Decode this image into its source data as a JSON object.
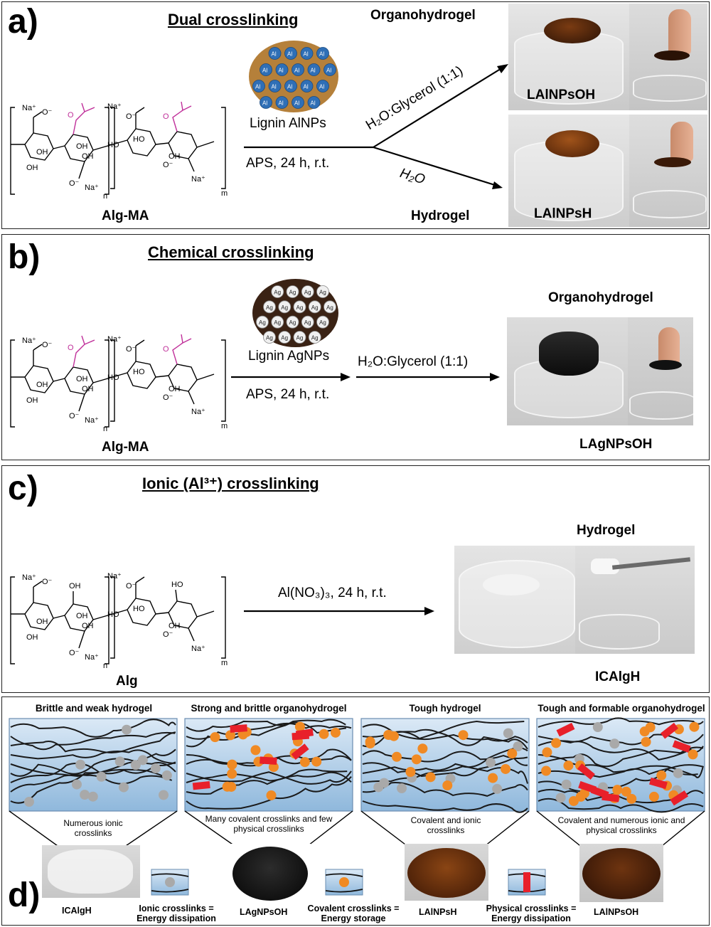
{
  "panel_a": {
    "label": "a)",
    "title": "Dual crosslinking",
    "polymer_label": "Alg-MA",
    "particles_label": "Lignin AlNPs",
    "particle_symbol": "Al",
    "conditions": "APS, 24 h, r.t.",
    "upper_arrow_label": "H₂O:Glycerol (1:1)",
    "lower_arrow_label": "H₂O",
    "top_product_type": "Organohydrogel",
    "bottom_product_type": "Hydrogel",
    "top_product_name": "LAlNPsOH",
    "bottom_product_name": "LAlNPsH"
  },
  "panel_b": {
    "label": "b)",
    "title": "Chemical crosslinking",
    "polymer_label": "Alg-MA",
    "particles_label": "Lignin AgNPs",
    "particle_symbol": "Ag",
    "conditions": "APS, 24 h, r.t.",
    "arrow_label": "H₂O:Glycerol (1:1)",
    "product_type": "Organohydrogel",
    "product_name": "LAgNPsOH"
  },
  "panel_c": {
    "label": "c)",
    "title": "Ionic (Al³⁺) crosslinking",
    "polymer_label": "Alg",
    "conditions": "Al(NO₃)₃, 24 h, r.t.",
    "product_type": "Hydrogel",
    "product_name": "ICAlgH"
  },
  "chem": {
    "na_plus": "Na⁺",
    "o_minus": "O⁻",
    "oh": "OH",
    "ho": "HO",
    "o": "O",
    "n": "n",
    "m": "m"
  },
  "panel_d": {
    "label": "d)",
    "network_titles": [
      "Brittle and weak hydrogel",
      "Strong and brittle organohydrogel",
      "Tough hydrogel",
      "Tough and formable organohydrogel"
    ],
    "network_descriptions": [
      "Numerous ionic crosslinks",
      "Many covalent crosslinks and few physical crosslinks",
      "Covalent and ionic crosslinks",
      "Covalent and numerous ionic and physical crosslinks"
    ],
    "sample_names": [
      "ICAlgH",
      "LAgNPsOH",
      "LAlNPsH",
      "LAlNPsOH"
    ],
    "legend": [
      "Ionic crosslinks = Energy dissipation",
      "Covalent crosslinks = Energy storage",
      "Physical crosslinks = Energy dissipation"
    ]
  },
  "colors": {
    "methacrylate": "#c0309a",
    "ionic_dot": "#a9a9a9",
    "covalent_dot": "#f08a24",
    "physical_bar": "#e8202a",
    "network_bg_top": "#dbe9f6",
    "network_bg_bottom": "#8fb8dc",
    "lignin": "#b5803a"
  }
}
